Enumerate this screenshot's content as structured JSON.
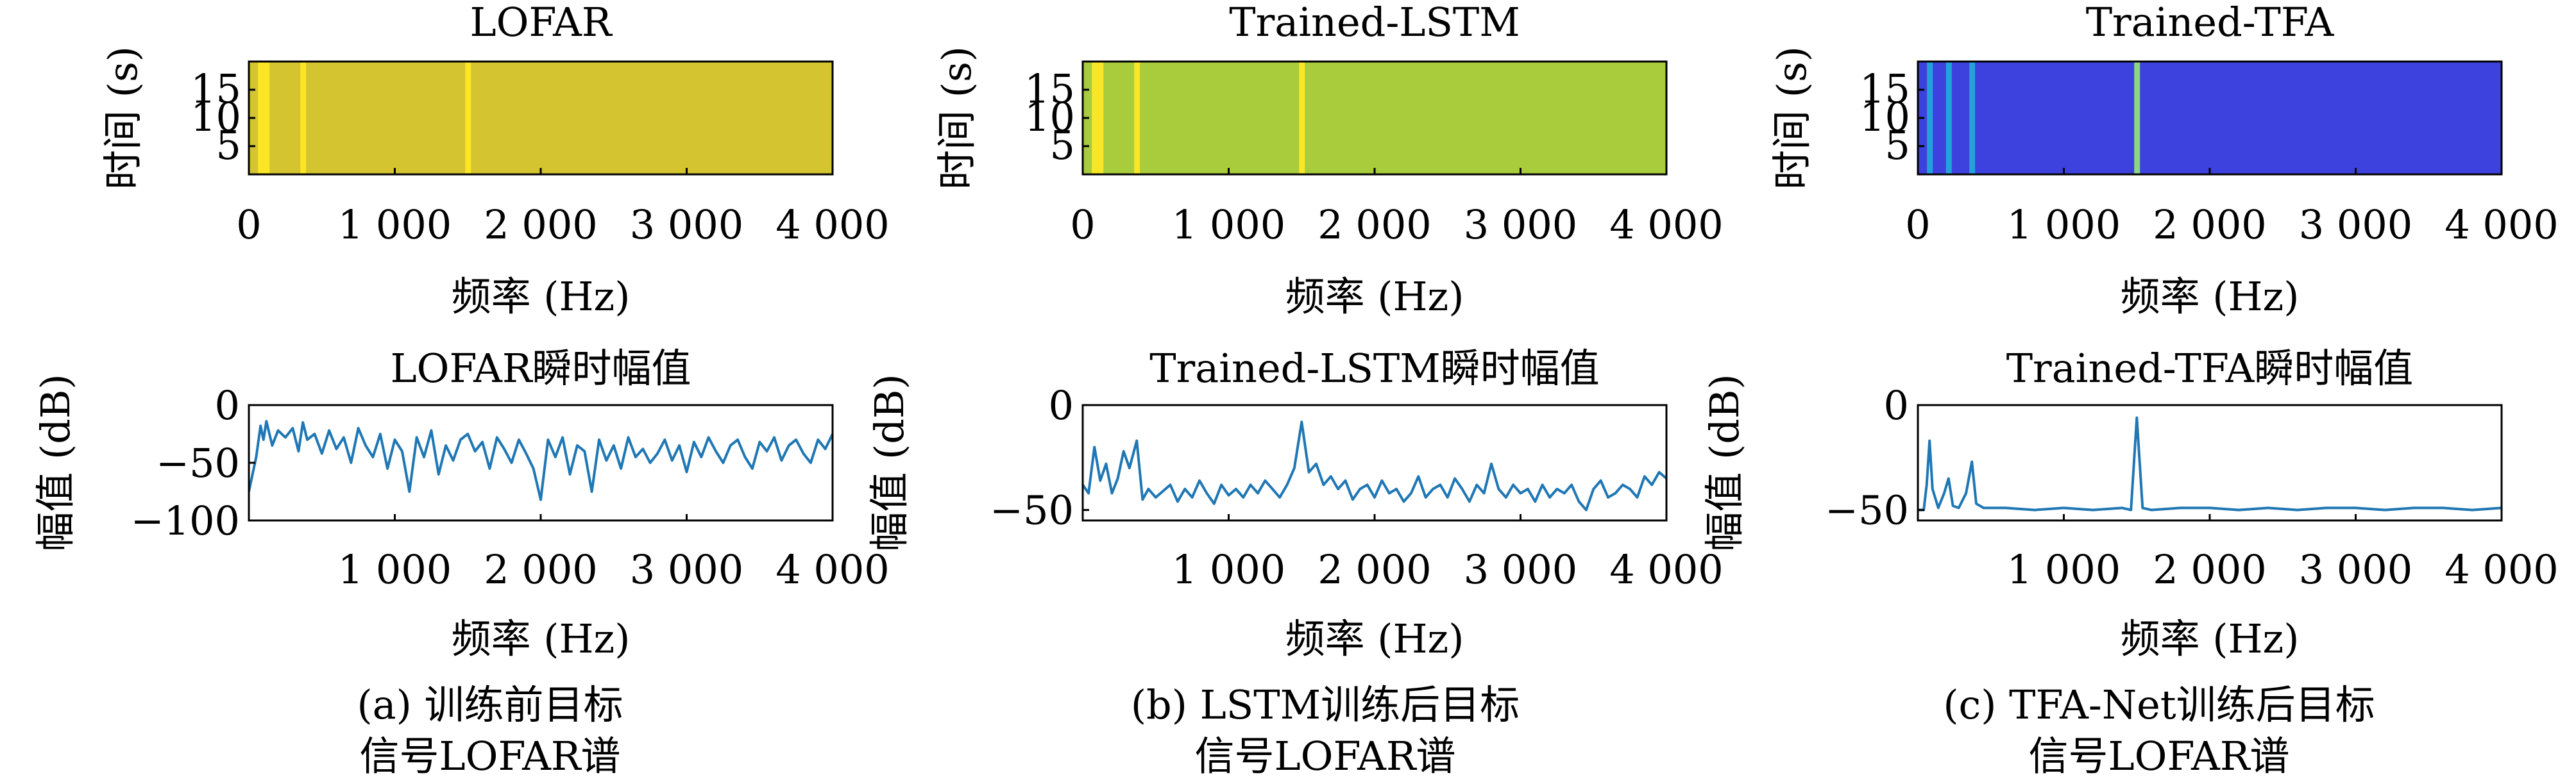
{
  "colors": {
    "line": "#1f77b4",
    "lofar_bg": "#d4c530",
    "lstm_bg": "#a8cc3c",
    "tfa_bg": "#3d42de",
    "stripe_yellow": "#fde725",
    "stripe_cyan": "#22a8d8",
    "stripe_green": "#8fe07a"
  },
  "captions": [
    {
      "line1": "(a) 训练前目标",
      "line2": "信号LOFAR谱"
    },
    {
      "line1": "(b) LSTM训练后目标",
      "line2": "信号LOFAR谱"
    },
    {
      "line1": "(c) TFA-Net训练后目标",
      "line2": "信号LOFAR谱"
    }
  ],
  "chart_data": [
    {
      "type": "heatmap",
      "title": "LOFAR",
      "xlabel": "频率 (Hz)",
      "ylabel": "时间 (s)",
      "xlim": [
        0,
        4000
      ],
      "ylim": [
        0,
        20
      ],
      "xticks": [
        0,
        1000,
        2000,
        3000,
        4000
      ],
      "xtick_labels": [
        "0",
        "1 000",
        "2 000",
        "3 000",
        "4 000"
      ],
      "yticks": [
        5,
        10,
        15
      ],
      "ytick_labels": [
        "5",
        "10",
        "15"
      ],
      "colormap": "viridis",
      "background_level": "high",
      "stripes": [
        {
          "freq": 80
        },
        {
          "freq": 120
        },
        {
          "freq": 370
        },
        {
          "freq": 1500
        }
      ]
    },
    {
      "type": "heatmap",
      "title": "Trained-LSTM",
      "xlabel": "频率 (Hz)",
      "ylabel": "时间 (s)",
      "xlim": [
        0,
        4000
      ],
      "ylim": [
        0,
        20
      ],
      "xticks": [
        0,
        1000,
        2000,
        3000,
        4000
      ],
      "xtick_labels": [
        "0",
        "1 000",
        "2 000",
        "3 000",
        "4 000"
      ],
      "yticks": [
        5,
        10,
        15
      ],
      "ytick_labels": [
        "5",
        "10",
        "15"
      ],
      "colormap": "viridis",
      "background_level": "medium-high",
      "stripes": [
        {
          "freq": 80
        },
        {
          "freq": 120
        },
        {
          "freq": 370
        },
        {
          "freq": 1500
        }
      ]
    },
    {
      "type": "heatmap",
      "title": "Trained-TFA",
      "xlabel": "频率 (Hz)",
      "ylabel": "时间 (s)",
      "xlim": [
        0,
        4000
      ],
      "ylim": [
        0,
        20
      ],
      "xticks": [
        0,
        1000,
        2000,
        3000,
        4000
      ],
      "xtick_labels": [
        "0",
        "1 000",
        "2 000",
        "3 000",
        "4 000"
      ],
      "yticks": [
        5,
        10,
        15
      ],
      "ytick_labels": [
        "5",
        "10",
        "15"
      ],
      "colormap": "viridis",
      "background_level": "low",
      "stripes": [
        {
          "freq": 80
        },
        {
          "freq": 210
        },
        {
          "freq": 370
        },
        {
          "freq": 1500
        }
      ]
    },
    {
      "type": "line",
      "title": "LOFAR瞬时幅值",
      "xlabel": "频率 (Hz)",
      "ylabel": "幅值 (dB)",
      "xlim": [
        0,
        4000
      ],
      "ylim": [
        -100,
        0
      ],
      "xticks": [
        1000,
        2000,
        3000,
        4000
      ],
      "xtick_labels": [
        "1 000",
        "2 000",
        "3 000",
        "4 000"
      ],
      "yticks": [
        0,
        -50,
        -100
      ],
      "ytick_labels": [
        "0",
        "−50",
        "−100"
      ],
      "series": [
        {
          "x": [
            0,
            50,
            80,
            100,
            120,
            160,
            200,
            250,
            300,
            340,
            370,
            400,
            450,
            500,
            550,
            600,
            650,
            700,
            750,
            800,
            850,
            900,
            950,
            1000,
            1050,
            1100,
            1150,
            1200,
            1250,
            1300,
            1350,
            1400,
            1450,
            1500,
            1550,
            1600,
            1650,
            1700,
            1750,
            1800,
            1850,
            1900,
            1950,
            2000,
            2050,
            2100,
            2150,
            2200,
            2250,
            2300,
            2350,
            2400,
            2450,
            2500,
            2550,
            2600,
            2650,
            2700,
            2750,
            2800,
            2850,
            2900,
            2950,
            3000,
            3050,
            3100,
            3150,
            3200,
            3250,
            3300,
            3350,
            3400,
            3450,
            3500,
            3550,
            3600,
            3650,
            3700,
            3750,
            3800,
            3850,
            3900,
            3950,
            4000
          ],
          "values": [
            -75,
            -45,
            -18,
            -30,
            -14,
            -35,
            -22,
            -28,
            -20,
            -40,
            -15,
            -30,
            -25,
            -42,
            -22,
            -38,
            -28,
            -50,
            -20,
            -35,
            -45,
            -25,
            -55,
            -30,
            -40,
            -75,
            -28,
            -45,
            -22,
            -60,
            -35,
            -48,
            -30,
            -25,
            -40,
            -32,
            -55,
            -28,
            -38,
            -50,
            -30,
            -42,
            -55,
            -82,
            -30,
            -45,
            -28,
            -60,
            -35,
            -40,
            -75,
            -30,
            -48,
            -35,
            -55,
            -28,
            -45,
            -38,
            -50,
            -42,
            -30,
            -48,
            -35,
            -58,
            -32,
            -45,
            -28,
            -40,
            -50,
            -35,
            -30,
            -45,
            -55,
            -32,
            -40,
            -28,
            -48,
            -35,
            -30,
            -42,
            -50,
            -30,
            -38,
            -25
          ]
        }
      ]
    },
    {
      "type": "line",
      "title": "Trained-LSTM瞬时幅值",
      "xlabel": "频率 (Hz)",
      "ylabel": "幅值 (dB)",
      "xlim": [
        0,
        4000
      ],
      "ylim": [
        -55,
        0
      ],
      "xticks": [
        1000,
        2000,
        3000,
        4000
      ],
      "xtick_labels": [
        "1 000",
        "2 000",
        "3 000",
        "4 000"
      ],
      "yticks": [
        0,
        -50
      ],
      "ytick_labels": [
        "0",
        "−50"
      ],
      "series": [
        {
          "x": [
            0,
            40,
            80,
            120,
            160,
            200,
            240,
            280,
            320,
            370,
            410,
            450,
            500,
            550,
            600,
            650,
            700,
            750,
            800,
            850,
            900,
            950,
            1000,
            1050,
            1100,
            1150,
            1200,
            1250,
            1300,
            1350,
            1400,
            1450,
            1500,
            1550,
            1600,
            1650,
            1700,
            1750,
            1800,
            1850,
            1900,
            1950,
            2000,
            2050,
            2100,
            2150,
            2200,
            2250,
            2300,
            2350,
            2400,
            2450,
            2500,
            2550,
            2600,
            2650,
            2700,
            2750,
            2800,
            2850,
            2900,
            2950,
            3000,
            3050,
            3100,
            3150,
            3200,
            3250,
            3300,
            3350,
            3400,
            3450,
            3500,
            3550,
            3600,
            3650,
            3700,
            3750,
            3800,
            3850,
            3900,
            3950,
            4000
          ],
          "values": [
            -38,
            -42,
            -20,
            -36,
            -28,
            -42,
            -35,
            -22,
            -30,
            -17,
            -45,
            -40,
            -44,
            -41,
            -38,
            -46,
            -40,
            -44,
            -36,
            -42,
            -47,
            -38,
            -43,
            -40,
            -44,
            -38,
            -42,
            -36,
            -40,
            -44,
            -38,
            -30,
            -8,
            -32,
            -28,
            -38,
            -34,
            -40,
            -36,
            -45,
            -40,
            -38,
            -44,
            -36,
            -42,
            -40,
            -46,
            -42,
            -34,
            -44,
            -40,
            -38,
            -44,
            -35,
            -40,
            -46,
            -38,
            -42,
            -28,
            -40,
            -44,
            -38,
            -42,
            -40,
            -46,
            -38,
            -44,
            -40,
            -42,
            -38,
            -46,
            -50,
            -40,
            -36,
            -44,
            -42,
            -38,
            -40,
            -44,
            -34,
            -38,
            -32,
            -35
          ]
        }
      ]
    },
    {
      "type": "line",
      "title": "Trained-TFA瞬时幅值",
      "xlabel": "频率 (Hz)",
      "ylabel": "幅值 (dB)",
      "xlim": [
        0,
        4000
      ],
      "ylim": [
        -55,
        0
      ],
      "xticks": [
        1000,
        2000,
        3000,
        4000
      ],
      "xtick_labels": [
        "1 000",
        "2 000",
        "3 000",
        "4 000"
      ],
      "yticks": [
        0,
        -50
      ],
      "ytick_labels": [
        "0",
        "−50"
      ],
      "series": [
        {
          "x": [
            0,
            40,
            60,
            80,
            100,
            140,
            180,
            210,
            240,
            280,
            330,
            370,
            400,
            450,
            600,
            800,
            1000,
            1200,
            1400,
            1460,
            1500,
            1540,
            1600,
            1800,
            2000,
            2200,
            2400,
            2600,
            2800,
            3000,
            3200,
            3400,
            3600,
            3800,
            4000
          ],
          "values": [
            -50,
            -50,
            -38,
            -17,
            -40,
            -49,
            -42,
            -35,
            -48,
            -49,
            -42,
            -27,
            -47,
            -49,
            -49,
            -50,
            -49,
            -50,
            -49,
            -50,
            -6,
            -49,
            -50,
            -49,
            -49,
            -50,
            -49,
            -50,
            -49,
            -49,
            -50,
            -49,
            -49,
            -50,
            -49
          ]
        }
      ]
    }
  ]
}
